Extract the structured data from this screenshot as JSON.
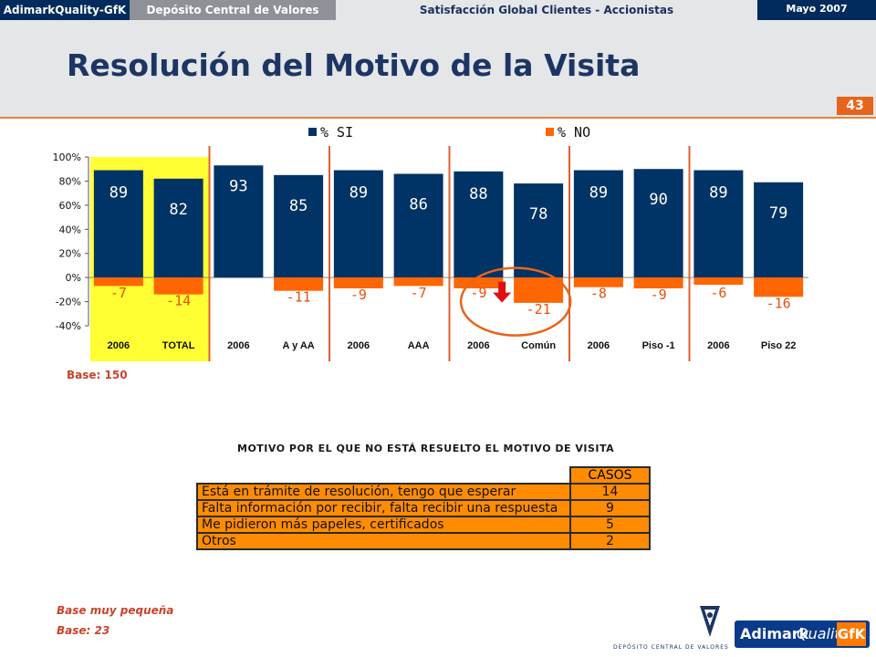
{
  "header": {
    "brand": "AdimarkQuality-GfK",
    "client": "Depósito Central de Valores",
    "study": "Satisfacción Global Clientes - Accionistas",
    "date": "Mayo 2007"
  },
  "page": {
    "title": "Resolución del Motivo de la Visita",
    "number": "43"
  },
  "chart_data": {
    "type": "bar",
    "categories": [
      "2006",
      "TOTAL",
      "2006",
      "A y AA",
      "2006",
      "AAA",
      "2006",
      "Común",
      "2006",
      "Piso -1",
      "2006",
      "Piso 22"
    ],
    "series": [
      {
        "name": "% SI",
        "values": [
          89,
          82,
          93,
          85,
          89,
          86,
          88,
          78,
          89,
          90,
          89,
          79
        ]
      },
      {
        "name": "% NO",
        "values": [
          -7,
          -14,
          null,
          -11,
          -9,
          -7,
          -9,
          -21,
          -8,
          -9,
          -6,
          -16
        ]
      }
    ],
    "yticks": [
      "100%",
      "80%",
      "60%",
      "40%",
      "20%",
      "0%",
      "-20%",
      "-40%"
    ],
    "ylim": [
      -40,
      100
    ],
    "legend": "top",
    "highlight_categories": [
      0,
      1
    ],
    "annotations": [
      {
        "category": 7,
        "type": "down-arrow-circle"
      }
    ],
    "colors": {
      "si": "#003366",
      "no": "#ff6600",
      "highlight": "#ffff33",
      "separator": "#e06030"
    }
  },
  "notes": {
    "base_chart": "Base: 150",
    "small_base": "Base muy pequeña",
    "base_table": "Base: 23"
  },
  "table": {
    "title": "MOTIVO POR EL QUE NO ESTÁ RESUELTO EL MOTIVO DE VISITA",
    "column": "CASOS",
    "rows": [
      {
        "reason": "Está en trámite de resolución, tengo que esperar",
        "count": "14"
      },
      {
        "reason": "Falta información por recibir, falta recibir una respuesta",
        "count": "9"
      },
      {
        "reason": "Me pidieron más papeles, certificados",
        "count": "5"
      },
      {
        "reason": "Otros",
        "count": "2"
      }
    ]
  },
  "logos": {
    "dcv": "DEPÓSITO CENTRAL DE VALORES",
    "adimark_a": "Adimark",
    "adimark_b": "Quality",
    "adimark_c": "GfK"
  }
}
